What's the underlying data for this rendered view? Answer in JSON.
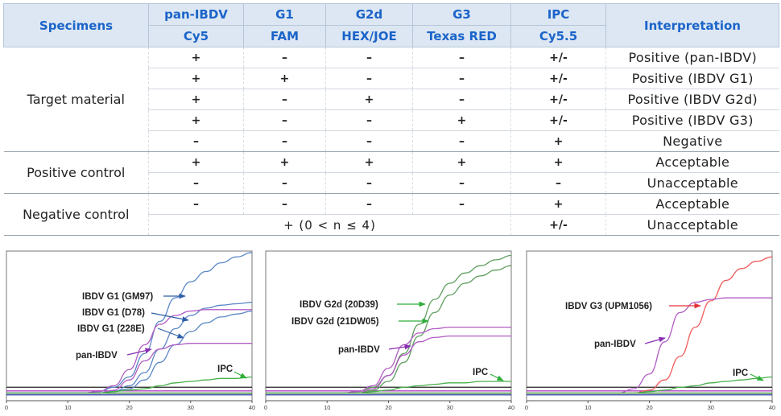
{
  "table": {
    "headers": {
      "specimens": "Specimens",
      "interpretation": "Interpretation",
      "targets": [
        {
          "name": "pan-IBDV",
          "dye": "Cy5"
        },
        {
          "name": "G1",
          "dye": "FAM"
        },
        {
          "name": "G2d",
          "dye": "HEX/JOE"
        },
        {
          "name": "G3",
          "dye": "Texas RED"
        },
        {
          "name": "IPC",
          "dye": "Cy5.5"
        }
      ]
    },
    "groups": {
      "target": "Target material",
      "positive": "Positive control",
      "negative": "Negative control"
    },
    "rows": [
      {
        "cells": [
          "+",
          "–",
          "–",
          "–",
          "+/-"
        ],
        "interp": "Positive (pan-IBDV)"
      },
      {
        "cells": [
          "+",
          "+",
          "–",
          "–",
          "+/-"
        ],
        "interp": "Positive (IBDV G1)"
      },
      {
        "cells": [
          "+",
          "–",
          "+",
          "–",
          "+/-"
        ],
        "interp": "Positive (IBDV G2d)"
      },
      {
        "cells": [
          "+",
          "–",
          "–",
          "+",
          "+/-"
        ],
        "interp": "Positive (IBDV G3)"
      },
      {
        "cells": [
          "–",
          "–",
          "–",
          "–",
          "+"
        ],
        "interp": "Negative"
      },
      {
        "cells": [
          "+",
          "+",
          "+",
          "+",
          "+"
        ],
        "interp": "Acceptable"
      },
      {
        "cells": [
          "–",
          "–",
          "–",
          "–",
          "–"
        ],
        "interp": "Unacceptable"
      },
      {
        "cells": [
          "–",
          "–",
          "–",
          "–",
          "+"
        ],
        "interp": "Acceptable"
      },
      {
        "merged": "+ (0 < n ≤ 4)",
        "ipc": "+/-",
        "interp": "Unacceptable"
      }
    ]
  },
  "chart_data": [
    {
      "type": "line",
      "x_ticks": [
        "0",
        "10",
        "20",
        "30",
        "40"
      ],
      "xlim": [
        0,
        40
      ],
      "annotations": [
        "IBDV G1 (GM97)",
        "IBDV G1 (D78)",
        "IBDV G1 (228E)",
        "pan-IBDV",
        "IPC"
      ],
      "series": [
        {
          "color": "#5b87c6",
          "y": [
            0.03,
            0.03,
            0.03,
            0.03,
            0.03,
            0.03,
            0.04,
            0.07,
            0.14,
            0.3,
            0.52,
            0.68,
            0.79,
            0.86,
            0.92,
            0.96,
            0.99
          ]
        },
        {
          "color": "#5b87c6",
          "y": [
            0.03,
            0.03,
            0.03,
            0.03,
            0.03,
            0.03,
            0.03,
            0.04,
            0.08,
            0.17,
            0.33,
            0.47,
            0.56,
            0.61,
            0.63,
            0.64,
            0.65
          ]
        },
        {
          "color": "#5b87c6",
          "y": [
            0.03,
            0.03,
            0.03,
            0.03,
            0.03,
            0.03,
            0.03,
            0.04,
            0.06,
            0.12,
            0.24,
            0.36,
            0.45,
            0.51,
            0.55,
            0.57,
            0.59
          ]
        },
        {
          "color": "#b25cc4",
          "y": [
            0.03,
            0.03,
            0.03,
            0.03,
            0.03,
            0.03,
            0.04,
            0.08,
            0.19,
            0.36,
            0.5,
            0.56,
            0.59,
            0.6,
            0.6,
            0.6,
            0.6
          ]
        },
        {
          "color": "#b25cc4",
          "y": [
            0.03,
            0.03,
            0.03,
            0.03,
            0.03,
            0.03,
            0.03,
            0.05,
            0.12,
            0.25,
            0.33,
            0.36,
            0.37,
            0.37,
            0.37,
            0.37,
            0.37
          ]
        },
        {
          "color": "#46b04a",
          "y": [
            0.03,
            0.03,
            0.03,
            0.03,
            0.03,
            0.03,
            0.03,
            0.04,
            0.05,
            0.06,
            0.08,
            0.1,
            0.11,
            0.12,
            0.13,
            0.13,
            0.14
          ]
        }
      ]
    },
    {
      "type": "line",
      "x_ticks": [
        "0",
        "10",
        "20",
        "30",
        "40"
      ],
      "xlim": [
        0,
        40
      ],
      "annotations": [
        "IBDV G2d (20D39)",
        "IBDV G2d (21DW05)",
        "pan-IBDV",
        "IPC"
      ],
      "series": [
        {
          "color": "#5e9e5e",
          "y": [
            0.03,
            0.03,
            0.03,
            0.03,
            0.03,
            0.03,
            0.04,
            0.07,
            0.15,
            0.3,
            0.5,
            0.67,
            0.78,
            0.85,
            0.9,
            0.94,
            0.97
          ]
        },
        {
          "color": "#5e9e5e",
          "y": [
            0.03,
            0.03,
            0.03,
            0.03,
            0.03,
            0.03,
            0.03,
            0.05,
            0.11,
            0.24,
            0.42,
            0.58,
            0.7,
            0.78,
            0.83,
            0.87,
            0.9
          ]
        },
        {
          "color": "#b25cc4",
          "y": [
            0.03,
            0.03,
            0.03,
            0.03,
            0.03,
            0.03,
            0.04,
            0.08,
            0.2,
            0.36,
            0.44,
            0.47,
            0.48,
            0.48,
            0.48,
            0.48,
            0.48
          ]
        },
        {
          "color": "#b25cc4",
          "y": [
            0.03,
            0.03,
            0.03,
            0.03,
            0.03,
            0.03,
            0.03,
            0.06,
            0.15,
            0.29,
            0.38,
            0.41,
            0.42,
            0.42,
            0.42,
            0.42,
            0.42
          ]
        },
        {
          "color": "#46b04a",
          "y": [
            0.03,
            0.03,
            0.03,
            0.03,
            0.03,
            0.03,
            0.03,
            0.04,
            0.05,
            0.07,
            0.08,
            0.09,
            0.1,
            0.1,
            0.11,
            0.11,
            0.11
          ]
        }
      ]
    },
    {
      "type": "line",
      "x_ticks": [
        "0",
        "10",
        "20",
        "30",
        "40"
      ],
      "xlim": [
        0,
        40
      ],
      "annotations": [
        "IBDV G3 (UPM1056)",
        "pan-IBDV",
        "IPC"
      ],
      "series": [
        {
          "color": "#f05a5a",
          "y": [
            0.03,
            0.03,
            0.03,
            0.03,
            0.03,
            0.03,
            0.03,
            0.03,
            0.05,
            0.12,
            0.28,
            0.48,
            0.66,
            0.8,
            0.88,
            0.93,
            0.96
          ]
        },
        {
          "color": "#b25cc4",
          "y": [
            0.03,
            0.03,
            0.03,
            0.03,
            0.03,
            0.03,
            0.03,
            0.06,
            0.16,
            0.38,
            0.58,
            0.65,
            0.67,
            0.68,
            0.68,
            0.68,
            0.68
          ]
        },
        {
          "color": "#46b04a",
          "y": [
            0.03,
            0.03,
            0.03,
            0.03,
            0.03,
            0.03,
            0.03,
            0.03,
            0.04,
            0.05,
            0.07,
            0.08,
            0.1,
            0.11,
            0.12,
            0.13,
            0.14
          ]
        }
      ]
    }
  ]
}
